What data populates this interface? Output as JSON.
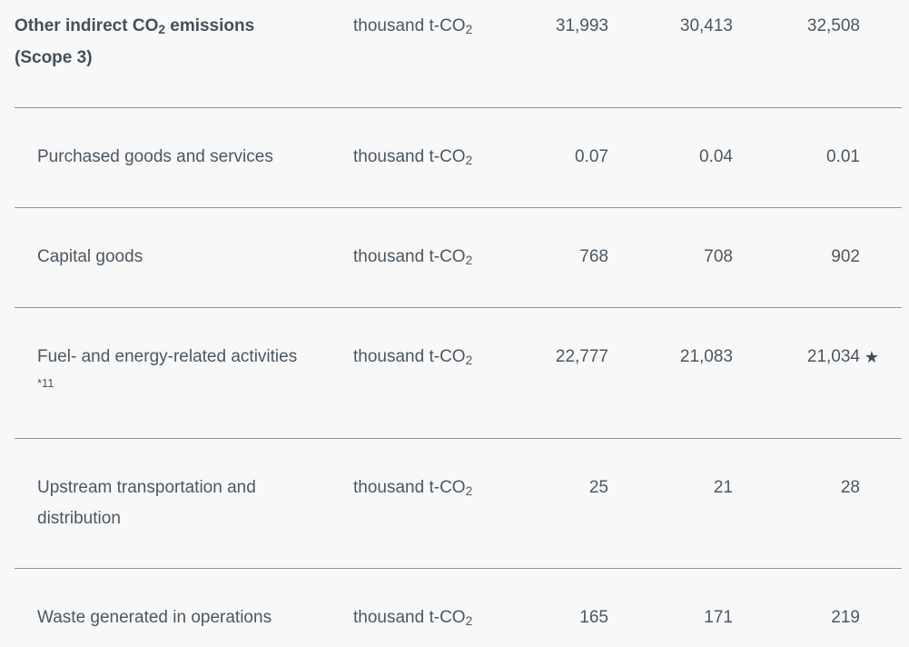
{
  "table": {
    "unit": {
      "pre": "thousand t-CO",
      "sub": "2"
    },
    "rows": [
      {
        "label": {
          "pre": "Other indirect CO",
          "sub": "2",
          "post": " emissions (Scope 3)"
        },
        "bold": true,
        "values": [
          "31,993",
          "30,413",
          "32,508"
        ]
      },
      {
        "label": {
          "pre": "Purchased goods and services"
        },
        "values": [
          "0.07",
          "0.04",
          "0.01"
        ]
      },
      {
        "label": {
          "pre": "Capital goods"
        },
        "values": [
          "768",
          "708",
          "902"
        ]
      },
      {
        "label": {
          "pre": "Fuel- and energy-related activities",
          "sup": "*11"
        },
        "values": [
          "22,777",
          "21,083",
          "21,034"
        ],
        "star": "★"
      },
      {
        "label": {
          "pre": "Upstream transportation and distribution"
        },
        "values": [
          "25",
          "21",
          "28"
        ]
      },
      {
        "label": {
          "pre": "Waste generated in operations"
        },
        "values": [
          "165",
          "171",
          "219"
        ]
      }
    ]
  },
  "colors": {
    "background": "#f8f8f8",
    "text": "#4a5762",
    "text_bold": "#41505c",
    "divider": "#8599a8"
  }
}
